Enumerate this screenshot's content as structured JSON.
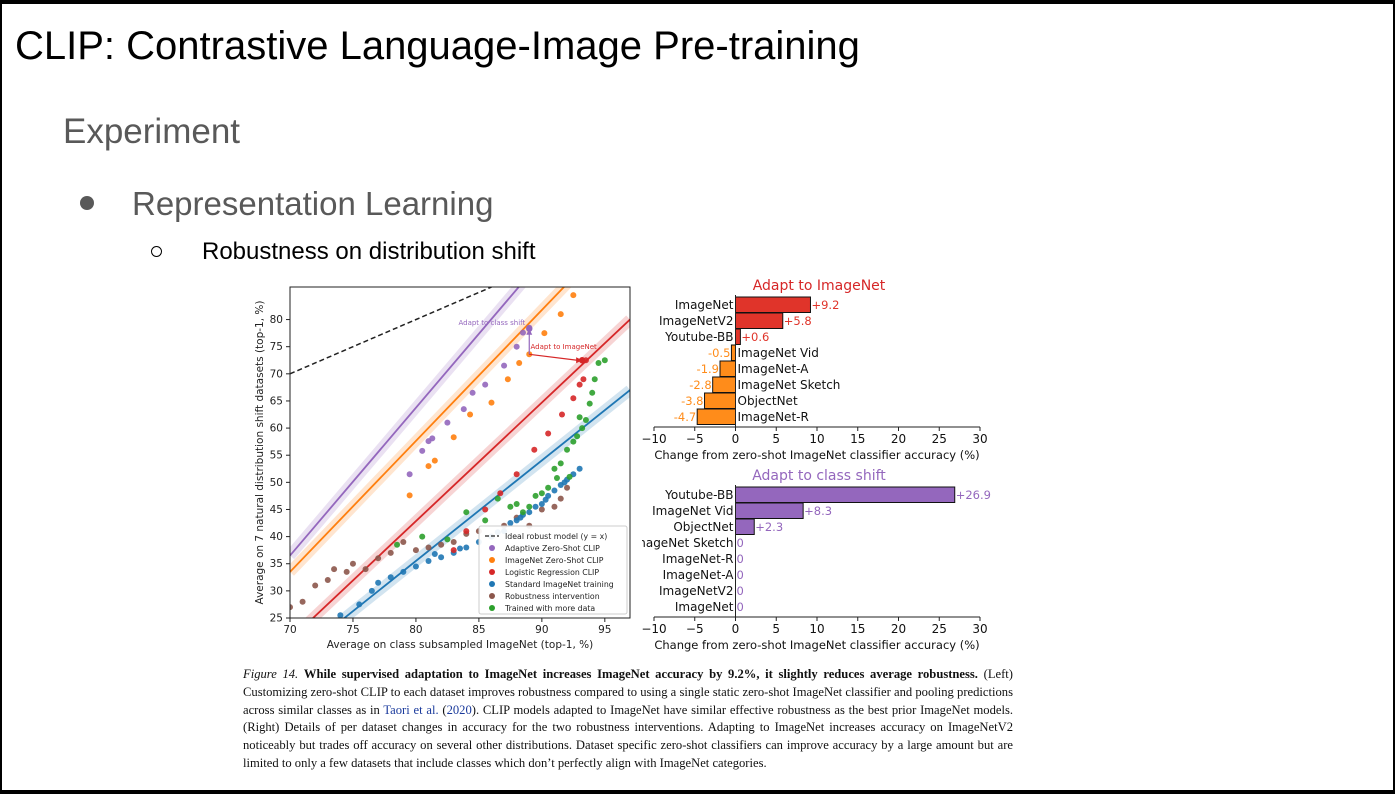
{
  "slide": {
    "title": "CLIP: Contrastive Language-Image Pre-training",
    "section": "Experiment",
    "bullet": "Representation Learning",
    "subbullet": "Robustness on distribution shift"
  },
  "colors": {
    "purple": "#9467bd",
    "orange": "#ff7f0e",
    "red": "#d62728",
    "blue": "#1f77b4",
    "brown": "#8c564b",
    "green": "#2ca02c",
    "bar_red": "#e0342a",
    "bar_orange": "#ff8c1a"
  },
  "caption": {
    "label": "Figure 14.",
    "bold": "While supervised adaptation to ImageNet increases ImageNet accuracy by 9.2%, it slightly reduces average robustness.",
    "text1": "(Left) Customizing zero-shot CLIP to each dataset improves robustness compared to using a single static zero-shot ImageNet classifier and pooling predictions across similar classes as in",
    "cite": "Taori et al.",
    "year_open": " (",
    "year": "2020",
    "year_close": ").",
    "text2": "CLIP models adapted to ImageNet have similar effective robustness as the best prior ImageNet models. (Right) Details of per dataset changes in accuracy for the two robustness interventions. Adapting to ImageNet increases accuracy on ImageNetV2 noticeably but trades off accuracy on several other distributions. Dataset specific zero-shot classifiers can improve accuracy by a large amount but are limited to only a few datasets that include classes which don’t perfectly align with ImageNet categories."
  },
  "chart_data": [
    {
      "type": "scatter",
      "xlabel": "Average on class subsampled ImageNet (top-1, %)",
      "ylabel": "Average on 7 natural distribution shift datasets (top-1, %)",
      "xlim": [
        70,
        97
      ],
      "ylim": [
        25,
        86
      ],
      "xticks": [
        "70",
        "75",
        "80",
        "85",
        "90",
        "95"
      ],
      "yticks": [
        "25",
        "30",
        "35",
        "40",
        "45",
        "50",
        "55",
        "60",
        "65",
        "70",
        "75",
        "80"
      ],
      "legend_position": "lower-right",
      "legend": [
        "Ideal robust model (y = x)",
        "Adaptive Zero-Shot CLIP",
        "ImageNet Zero-Shot CLIP",
        "Logistic Regression CLIP",
        "Standard ImageNet training",
        "Robustness intervention",
        "Trained with more data"
      ],
      "annotations": [
        "Adapt to class shift",
        "Adapt to ImageNet"
      ],
      "fits": [
        {
          "series": "Adaptive Zero-Shot CLIP",
          "x": [
            70,
            90
          ],
          "y": [
            36.5,
            91
          ]
        },
        {
          "series": "ImageNet Zero-Shot CLIP",
          "x": [
            70,
            93
          ],
          "y": [
            33.5,
            89
          ]
        },
        {
          "series": "Logistic Regression CLIP",
          "x": [
            70,
            97
          ],
          "y": [
            21,
            80
          ]
        },
        {
          "series": "Standard ImageNet training",
          "x": [
            70,
            97
          ],
          "y": [
            17,
            67
          ]
        }
      ],
      "series": [
        {
          "name": "Adaptive Zero-Shot CLIP",
          "points": [
            [
              79.5,
              51.5
            ],
            [
              80.5,
              55.8
            ],
            [
              81,
              57.6
            ],
            [
              81.3,
              58.1
            ],
            [
              82.5,
              61
            ],
            [
              83.8,
              63.5
            ],
            [
              84.5,
              66.5
            ],
            [
              85.5,
              68
            ],
            [
              87,
              71.5
            ],
            [
              88,
              75
            ],
            [
              88.5,
              77.6
            ],
            [
              89,
              78.5
            ]
          ]
        },
        {
          "name": "ImageNet Zero-Shot CLIP",
          "points": [
            [
              79.5,
              47.6
            ],
            [
              81,
              53
            ],
            [
              81.5,
              54
            ],
            [
              83,
              58.3
            ],
            [
              84.3,
              62.5
            ],
            [
              86,
              64.7
            ],
            [
              87.3,
              69
            ],
            [
              88.2,
              72
            ],
            [
              89,
              73.6
            ],
            [
              90.2,
              77.5
            ],
            [
              91.5,
              81
            ],
            [
              92.5,
              84.5
            ]
          ]
        },
        {
          "name": "Logistic Regression CLIP",
          "points": [
            [
              83,
              37.5
            ],
            [
              84,
              41
            ],
            [
              85.5,
              45
            ],
            [
              86.7,
              48
            ],
            [
              88,
              51.5
            ],
            [
              89.4,
              56
            ],
            [
              90.5,
              59
            ],
            [
              91.6,
              62.5
            ],
            [
              92.5,
              65.5
            ],
            [
              93,
              68
            ],
            [
              93.3,
              69
            ],
            [
              93.5,
              72.5
            ]
          ]
        },
        {
          "name": "Standard ImageNet training",
          "points": [
            [
              74,
              25.5
            ],
            [
              75.5,
              27.5
            ],
            [
              76.5,
              30
            ],
            [
              77,
              31.5
            ],
            [
              78,
              32.5
            ],
            [
              79,
              33.5
            ],
            [
              80,
              34.5
            ],
            [
              81,
              35.5
            ],
            [
              82,
              36.2
            ],
            [
              83,
              37
            ],
            [
              84,
              38
            ],
            [
              85,
              39
            ],
            [
              86,
              40
            ],
            [
              87,
              41
            ],
            [
              87.5,
              42.5
            ],
            [
              88,
              43
            ],
            [
              88.5,
              44
            ],
            [
              89,
              44.5
            ],
            [
              89.5,
              45.5
            ],
            [
              90,
              46
            ],
            [
              90.5,
              47.5
            ],
            [
              91,
              48.5
            ],
            [
              91.5,
              49.5
            ],
            [
              92,
              50.5
            ],
            [
              92.5,
              51.5
            ],
            [
              93,
              52.5
            ],
            [
              81.5,
              36.8
            ],
            [
              83.5,
              37.8
            ],
            [
              86.5,
              40.8
            ],
            [
              88.3,
              43.5
            ],
            [
              90.3,
              46.8
            ],
            [
              91.8,
              50
            ]
          ]
        },
        {
          "name": "Robustness intervention",
          "points": [
            [
              70,
              27
            ],
            [
              71,
              28
            ],
            [
              72,
              31
            ],
            [
              73,
              32
            ],
            [
              73.5,
              34
            ],
            [
              74.5,
              33.5
            ],
            [
              75,
              35
            ],
            [
              76,
              34
            ],
            [
              77,
              36
            ],
            [
              78,
              37
            ],
            [
              79,
              39
            ],
            [
              80,
              37.5
            ],
            [
              81,
              38
            ],
            [
              82,
              38.5
            ],
            [
              83,
              39
            ],
            [
              84,
              40.5
            ],
            [
              85,
              41
            ],
            [
              86,
              40
            ],
            [
              87,
              42
            ],
            [
              88,
              43.5
            ],
            [
              89,
              42
            ],
            [
              90,
              45
            ],
            [
              91,
              45.5
            ],
            [
              91.5,
              47
            ],
            [
              92,
              49
            ]
          ]
        },
        {
          "name": "Trained with more data",
          "points": [
            [
              78.5,
              38.5
            ],
            [
              80.5,
              40
            ],
            [
              82.5,
              39.5
            ],
            [
              84,
              44.5
            ],
            [
              85.5,
              43
            ],
            [
              86.5,
              47
            ],
            [
              87.5,
              45.5
            ],
            [
              88,
              46
            ],
            [
              88.5,
              44.5
            ],
            [
              89,
              45.5
            ],
            [
              89.5,
              47.5
            ],
            [
              90,
              48
            ],
            [
              90.5,
              49
            ],
            [
              91,
              52.5
            ],
            [
              91.5,
              53.5
            ],
            [
              92,
              56
            ],
            [
              92.5,
              57.5
            ],
            [
              92.8,
              58.5
            ],
            [
              93.2,
              60
            ],
            [
              93.5,
              61.5
            ],
            [
              93.8,
              64.5
            ],
            [
              94,
              66.5
            ],
            [
              94.2,
              69
            ],
            [
              94.5,
              72
            ],
            [
              95,
              72.5
            ],
            [
              92.2,
              51
            ],
            [
              91.2,
              50.8
            ],
            [
              93,
              62
            ]
          ]
        }
      ]
    },
    {
      "type": "bar",
      "title": "Adapt to ImageNet",
      "xlabel": "Change from zero-shot ImageNet classifier accuracy (%)",
      "xlim": [
        -10,
        30
      ],
      "xticks": [
        "−10",
        "−5",
        "0",
        "5",
        "10",
        "15",
        "20",
        "25",
        "30"
      ],
      "categories": [
        "ImageNet",
        "ImageNetV2",
        "Youtube-BB",
        "ImageNet Vid",
        "ImageNet-A",
        "ImageNet Sketch",
        "ObjectNet",
        "ImageNet-R"
      ],
      "values": [
        9.2,
        5.8,
        0.6,
        -0.5,
        -1.9,
        -2.8,
        -3.8,
        -4.7
      ],
      "value_labels": [
        "+9.2",
        "+5.8",
        "+0.6",
        "-0.5",
        "-1.9",
        "-2.8",
        "-3.8",
        "-4.7"
      ]
    },
    {
      "type": "bar",
      "title": "Adapt to class shift",
      "xlabel": "Change from zero-shot ImageNet classifier accuracy (%)",
      "xlim": [
        -10,
        30
      ],
      "xticks": [
        "−10",
        "−5",
        "0",
        "5",
        "10",
        "15",
        "20",
        "25",
        "30"
      ],
      "categories": [
        "Youtube-BB",
        "ImageNet Vid",
        "ObjectNet",
        "ImageNet Sketch",
        "ImageNet-R",
        "ImageNet-A",
        "ImageNetV2",
        "ImageNet"
      ],
      "values": [
        26.9,
        8.3,
        2.3,
        0,
        0,
        0,
        0,
        0
      ],
      "value_labels": [
        "+26.9",
        "+8.3",
        "+2.3",
        "0",
        "0",
        "0",
        "0",
        "0"
      ]
    }
  ]
}
